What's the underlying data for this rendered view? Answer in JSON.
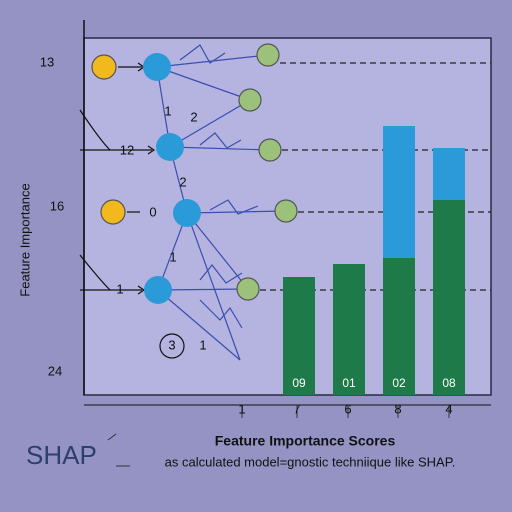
{
  "chart_data": {
    "type": "bar",
    "title": "Feature Importance Scores",
    "subtitle": "as calculated model=gnostic techniique like SHAP.",
    "y_axis_label": "Feature Importance",
    "logo": "SHAP",
    "y_labels": [
      "13",
      "16",
      "24"
    ],
    "network_labels": [
      "12",
      "0",
      "1",
      "1",
      "2",
      "2",
      "1",
      "3",
      "1"
    ],
    "bar_labels": [
      "09",
      "01",
      "02",
      "08"
    ],
    "x_labels": [
      "1",
      "7",
      "6",
      "8",
      "4"
    ],
    "ylim": [
      0,
      357
    ],
    "stacked": true,
    "series": [
      {
        "name": "green",
        "color": "#1f7a4a",
        "values": [
          118,
          131,
          137,
          195
        ]
      },
      {
        "name": "blue",
        "color": "#2b9ad8",
        "values": [
          0,
          0,
          132,
          52
        ]
      }
    ]
  }
}
